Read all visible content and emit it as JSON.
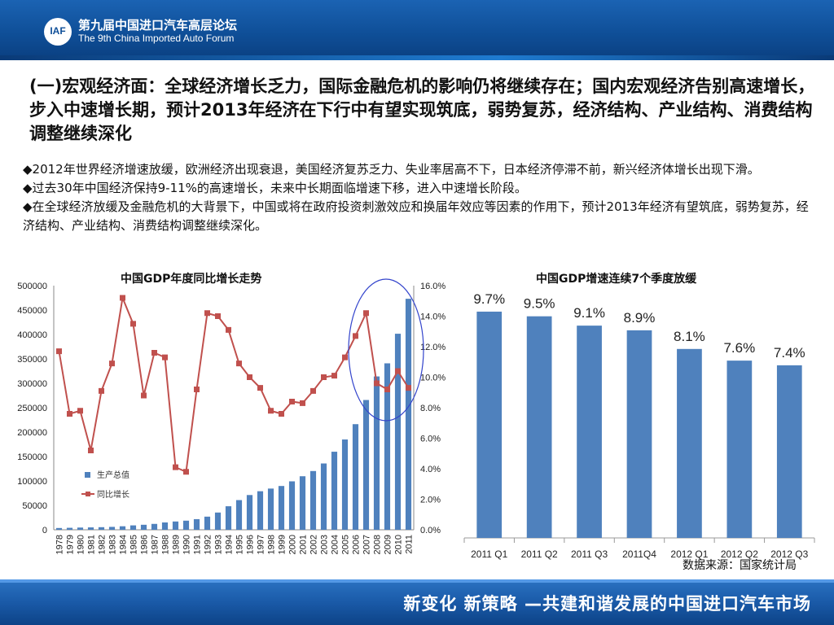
{
  "header": {
    "logo_text": "IAF",
    "forum_cn": "第九届中国进口汽车高层论坛",
    "forum_en": "The 9th China Imported Auto Forum"
  },
  "headline": "(一)宏观经济面：全球经济增长乏力，国际金融危机的影响仍将继续存在；国内宏观经济告别高速增长，步入中速增长期，预计2013年经济在下行中有望实现筑底，弱势复苏，经济结构、产业结构、消费结构调整继续深化",
  "bullets": [
    "◆2012年世界经济增速放缓，欧洲经济出现衰退，美国经济复苏乏力、失业率居高不下，日本经济停滞不前，新兴经济体增长出现下滑。",
    "◆过去30年中国经济保持9-11%的高速增长，未来中长期面临增速下移，进入中速增长阶段。",
    "◆在全球经济放缓及金融危机的大背景下，中国或将在政府投资刺激效应和换届年效应等因素的作用下，预计2013年经济有望筑底，弱势复苏，经济结构、产业结构、消费结构调整继续深化。"
  ],
  "source": "数据来源：国家统计局",
  "footer": {
    "slogan": "新变化  新策略 —共建和谐发展的中国进口汽车市场"
  },
  "colors": {
    "bar": "#4f81bd",
    "line": "#c0504d",
    "circle": "#3344cc",
    "header": "#0f4f98"
  },
  "chart_data": [
    {
      "type": "bar",
      "title": "中国GDP年度同比增长走势",
      "categories": [
        "1978",
        "1979",
        "1980",
        "1981",
        "1982",
        "1983",
        "1984",
        "1985",
        "1986",
        "1987",
        "1988",
        "1989",
        "1990",
        "1991",
        "1992",
        "1993",
        "1994",
        "1995",
        "1996",
        "1997",
        "1998",
        "1999",
        "2000",
        "2001",
        "2002",
        "2003",
        "2004",
        "2005",
        "2006",
        "2007",
        "2008",
        "2009",
        "2010",
        "2011"
      ],
      "series": [
        {
          "name": "生产总值",
          "type": "bar",
          "axis": "left",
          "values": [
            3645,
            4063,
            4546,
            4892,
            5323,
            5963,
            7208,
            9016,
            10275,
            12059,
            15043,
            16992,
            18668,
            21781,
            26923,
            35334,
            48198,
            60794,
            71177,
            78973,
            84402,
            89677,
            99215,
            109655,
            120333,
            135823,
            159878,
            184937,
            216314,
            265810,
            314045,
            340903,
            401513,
            473104
          ]
        },
        {
          "name": "同比增长",
          "type": "line",
          "axis": "right",
          "values": [
            11.7,
            7.6,
            7.8,
            5.2,
            9.1,
            10.9,
            15.2,
            13.5,
            8.8,
            11.6,
            11.3,
            4.1,
            3.8,
            9.2,
            14.2,
            14.0,
            13.1,
            10.9,
            10.0,
            9.3,
            7.8,
            7.6,
            8.4,
            8.3,
            9.1,
            10.0,
            10.1,
            11.3,
            12.7,
            14.2,
            9.6,
            9.2,
            10.4,
            9.3
          ]
        }
      ],
      "yleft": {
        "ticks": [
          "500000",
          "450000",
          "400000",
          "350000",
          "300000",
          "250000",
          "200000",
          "150000",
          "100000",
          "50000",
          "0"
        ],
        "ylim": [
          0,
          500000
        ]
      },
      "yright": {
        "ticks": [
          "16.0%",
          "14.0%",
          "12.0%",
          "10.0%",
          "8.0%",
          "6.0%",
          "4.0%",
          "2.0%",
          "0.0%"
        ],
        "ylim": [
          0,
          16
        ]
      },
      "legend": {
        "position": "left",
        "items": [
          "生产总值",
          "同比增长"
        ]
      },
      "annotation": "circle around 2007-2011"
    },
    {
      "type": "bar",
      "title": "中国GDP增速连续7个季度放缓",
      "categories": [
        "2011 Q1",
        "2011 Q2",
        "2011 Q3",
        "2011Q4",
        "2012 Q1",
        "2012 Q2",
        "2012 Q3"
      ],
      "values": [
        9.7,
        9.5,
        9.1,
        8.9,
        8.1,
        7.6,
        7.4
      ],
      "labels": [
        "9.7%",
        "9.5%",
        "9.1%",
        "8.9%",
        "8.1%",
        "7.6%",
        "7.4%"
      ],
      "ylim": [
        0,
        10.5
      ]
    }
  ]
}
